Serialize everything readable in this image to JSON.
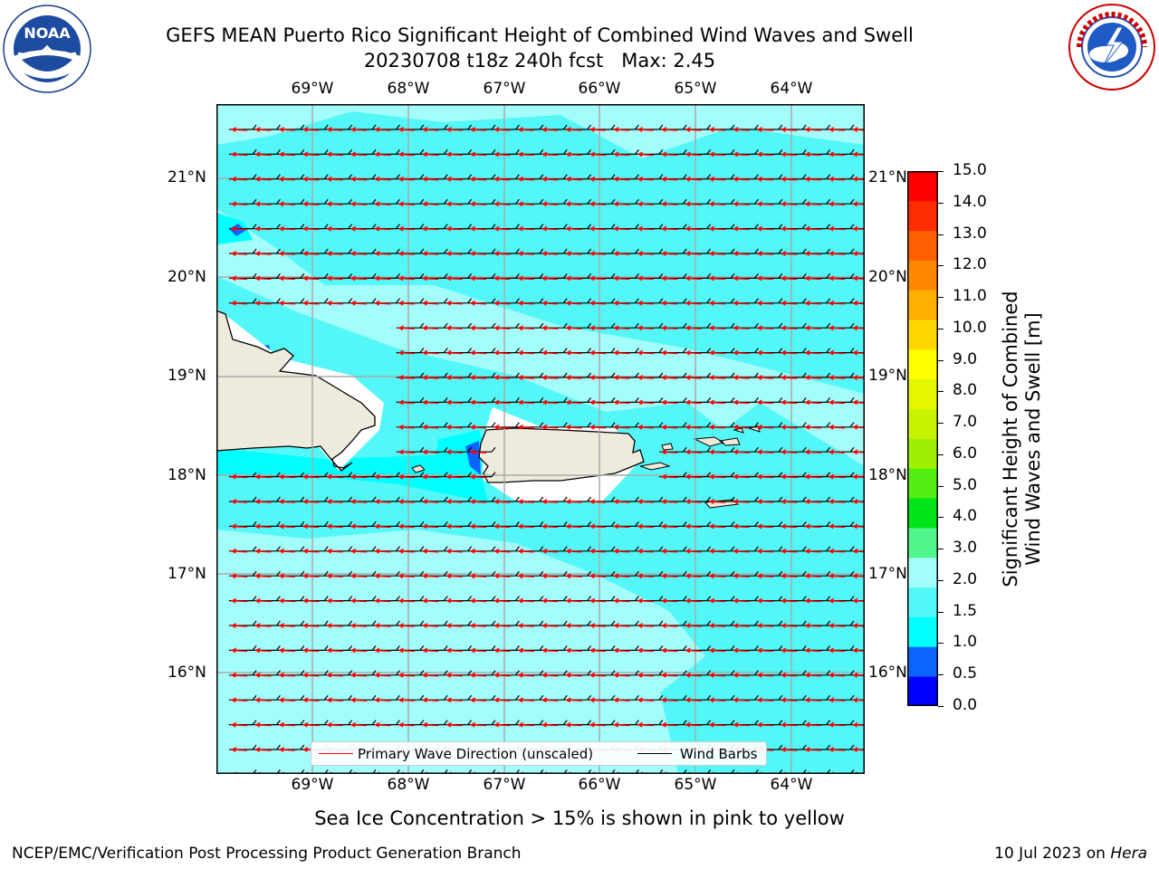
{
  "title": {
    "line1": "GEFS MEAN Puerto Rico Significant Height of Combined Wind Waves and Swell",
    "line2": "20230708 t18z 240h fcst   Max: 2.45"
  },
  "logos": {
    "noaa": {
      "text": "NOAA",
      "ring_text": "NATIONAL OCEANIC AND ATMOSPHERIC ADMINISTRATION · U.S. DEPARTMENT OF COMMERCE"
    },
    "nws": {
      "ring_text": "NATIONAL WEATHER SERVICE"
    }
  },
  "map": {
    "lon_ticks": [
      "69°W",
      "68°W",
      "67°W",
      "66°W",
      "65°W",
      "64°W"
    ],
    "lat_ticks": [
      "21°N",
      "20°N",
      "19°N",
      "18°N",
      "17°N",
      "16°N"
    ],
    "legend": {
      "primary_wave": "Primary Wave Direction (unscaled)",
      "wind_barbs": "Wind Barbs"
    },
    "colors": {
      "wave_arrow": "#ff0000",
      "wind_barb": "#000000",
      "land": "#efebdc",
      "grid": "#aaaaaa"
    }
  },
  "colorbar": {
    "title_line1": "Significant Height of Combined",
    "title_line2": "Wind Waves and Swell [m]",
    "labels": [
      "15.0",
      "14.0",
      "13.0",
      "12.0",
      "11.0",
      "10.0",
      "9.0",
      "8.0",
      "7.0",
      "6.0",
      "5.0",
      "4.0",
      "3.0",
      "2.0",
      "1.5",
      "1.0",
      "0.5",
      "0.0"
    ],
    "colors": [
      "#0000ff",
      "#0a64ff",
      "#00ffff",
      "#54f7f7",
      "#a3fdfb",
      "#51f589",
      "#00e41a",
      "#53ee12",
      "#9cef00",
      "#c8f300",
      "#e4f600",
      "#ffff00",
      "#ffd700",
      "#ffaf00",
      "#ff8700",
      "#ff5f00",
      "#ff2d00",
      "#ff0000"
    ]
  },
  "caption": "Sea Ice Concentration > 15% is shown in pink to yellow",
  "footer": {
    "left": "NCEP/EMC/Verification Post Processing Product Generation Branch",
    "date": "10 Jul 2023 on ",
    "machine": "Hera"
  }
}
